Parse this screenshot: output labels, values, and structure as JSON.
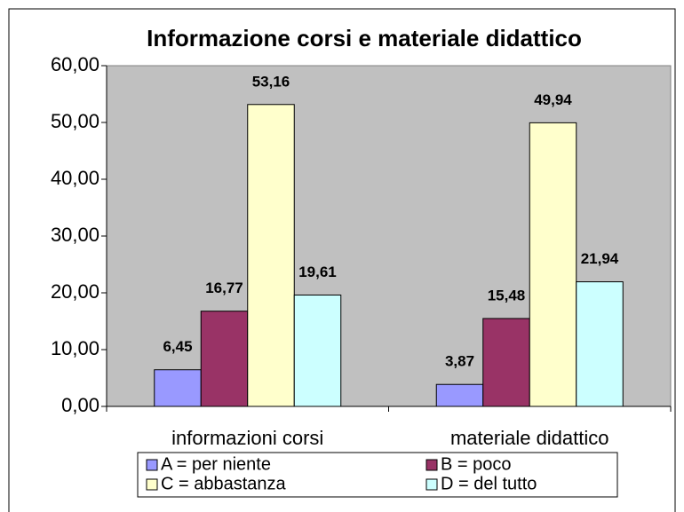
{
  "chart_data": {
    "type": "bar",
    "title": "Informazione corsi e materiale didattico",
    "categories": [
      "informazioni corsi",
      "materiale didattico"
    ],
    "series": [
      {
        "name": "A = per niente",
        "color": "#9999ff",
        "values": [
          6.45,
          3.87
        ],
        "value_labels": [
          "6,45",
          "3,87"
        ]
      },
      {
        "name": "B = poco",
        "color": "#993366",
        "values": [
          16.77,
          15.48
        ],
        "value_labels": [
          "16,77",
          "15,48"
        ]
      },
      {
        "name": "C = abbastanza",
        "color": "#ffffcc",
        "values": [
          53.16,
          49.94
        ],
        "value_labels": [
          "53,16",
          "49,94"
        ]
      },
      {
        "name": "D = del tutto",
        "color": "#ccffff",
        "values": [
          19.61,
          21.94
        ],
        "value_labels": [
          "19,61",
          "21,94"
        ]
      }
    ],
    "ylim": [
      0,
      60
    ],
    "yticks": [
      {
        "value": 0,
        "label": "0,00"
      },
      {
        "value": 10,
        "label": "10,00"
      },
      {
        "value": 20,
        "label": "20,00"
      },
      {
        "value": 30,
        "label": "30,00"
      },
      {
        "value": 40,
        "label": "40,00"
      },
      {
        "value": 50,
        "label": "50,00"
      },
      {
        "value": 60,
        "label": "60,00"
      }
    ],
    "legend": "bottom"
  }
}
